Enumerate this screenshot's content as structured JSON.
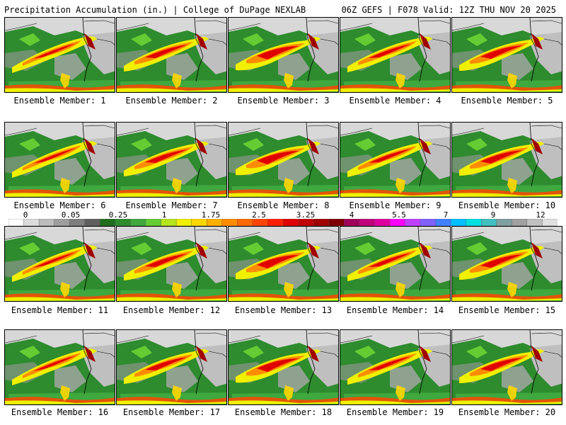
{
  "header": {
    "title_left": "Precipitation Accumulation (in.) | College of DuPage NEXLAB",
    "title_right": "06Z GEFS | F078 Valid: 12Z THU NOV 20 2025"
  },
  "colorbar": {
    "labels": [
      "0",
      "0.05",
      "0.25",
      "1",
      "1.75",
      "2.5",
      "3.25",
      "4",
      "5.5",
      "7",
      "9",
      "12"
    ],
    "colors": [
      "#ffffff",
      "#dcdcdc",
      "#bdbdbd",
      "#9e9e9e",
      "#7f7f7f",
      "#5f5f5f",
      "#1e6e1e",
      "#2e8b2e",
      "#3fa83f",
      "#66cc33",
      "#b5e61d",
      "#f0f000",
      "#ffd700",
      "#ffb000",
      "#ff8c00",
      "#ff6a00",
      "#ff4500",
      "#ff2000",
      "#e00000",
      "#c00000",
      "#a00000",
      "#800000",
      "#a0005a",
      "#c0007a",
      "#e000a0",
      "#ff00ff",
      "#c040ff",
      "#8060ff",
      "#4080ff",
      "#00c0ff",
      "#00e0e0",
      "#40c0c0",
      "#80a0a0",
      "#a0a0a0",
      "#c0c0c0",
      "#e0e0e0"
    ]
  },
  "members": [
    {
      "label": "Ensemble Member: 1"
    },
    {
      "label": "Ensemble Member: 2"
    },
    {
      "label": "Ensemble Member: 3"
    },
    {
      "label": "Ensemble Member: 4"
    },
    {
      "label": "Ensemble Member: 5"
    },
    {
      "label": "Ensemble Member: 6"
    },
    {
      "label": "Ensemble Member: 7"
    },
    {
      "label": "Ensemble Member: 8"
    },
    {
      "label": "Ensemble Member: 9"
    },
    {
      "label": "Ensemble Member: 10"
    },
    {
      "label": "Ensemble Member: 11"
    },
    {
      "label": "Ensemble Member: 12"
    },
    {
      "label": "Ensemble Member: 13"
    },
    {
      "label": "Ensemble Member: 14"
    },
    {
      "label": "Ensemble Member: 15"
    },
    {
      "label": "Ensemble Member: 16"
    },
    {
      "label": "Ensemble Member: 17"
    },
    {
      "label": "Ensemble Member: 18"
    },
    {
      "label": "Ensemble Member: 19"
    },
    {
      "label": "Ensemble Member: 20"
    }
  ]
}
